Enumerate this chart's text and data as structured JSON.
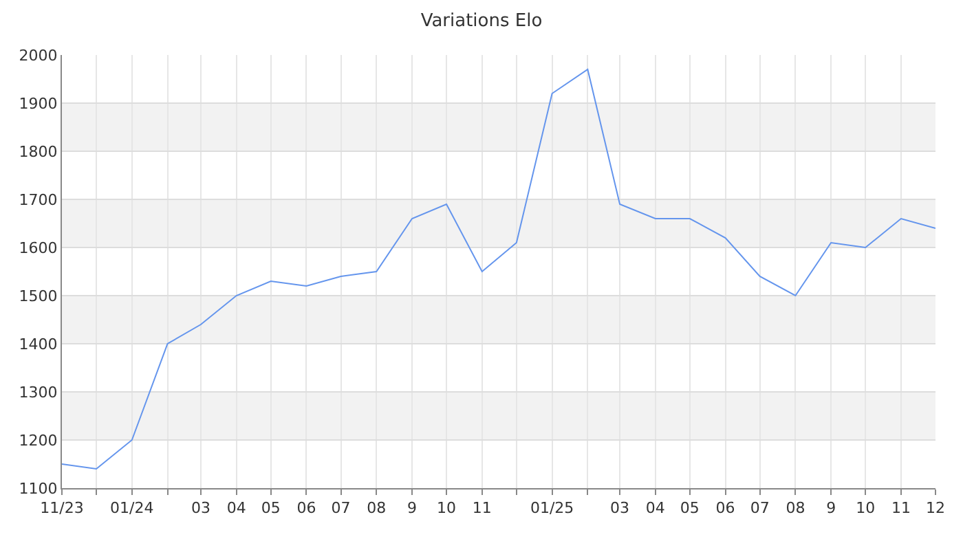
{
  "chart_data": {
    "type": "line",
    "title": "Variations Elo",
    "x": [
      "2023-11",
      "2023-12",
      "2024-01",
      "2024-02",
      "2024-03",
      "2024-04",
      "2024-05",
      "2024-06",
      "2024-07",
      "2024-08",
      "2024-09",
      "2024-10",
      "2024-11",
      "2024-12",
      "2025-01",
      "2025-02",
      "2025-03",
      "2025-04",
      "2025-05",
      "2025-06",
      "2025-07",
      "2025-08",
      "2025-09",
      "2025-10",
      "2025-11",
      "2025-12"
    ],
    "series": [
      {
        "color": "#6495ed",
        "values": [
          1150,
          1140,
          1200,
          1400,
          1440,
          1500,
          1530,
          1520,
          1540,
          1550,
          1660,
          1690,
          1550,
          1610,
          1920,
          1970,
          1690,
          1660,
          1660,
          1620,
          1540,
          1500,
          1610,
          1600,
          1660,
          1640
        ]
      }
    ],
    "xlim": [
      "2023-11",
      "2025-12"
    ],
    "xticks": [
      {
        "value": "2023-11",
        "label": "11/23"
      },
      {
        "value": "2023-12",
        "label": null
      },
      {
        "value": "2024-01",
        "label": "01/24"
      },
      {
        "value": "2024-02",
        "label": null
      },
      {
        "value": "2024-03",
        "label": "03"
      },
      {
        "value": "2024-04",
        "label": "04"
      },
      {
        "value": "2024-05",
        "label": "05"
      },
      {
        "value": "2024-06",
        "label": "06"
      },
      {
        "value": "2024-07",
        "label": "07"
      },
      {
        "value": "2024-08",
        "label": "08"
      },
      {
        "value": "2024-09",
        "label": "9"
      },
      {
        "value": "2024-10",
        "label": "10"
      },
      {
        "value": "2024-11",
        "label": "11"
      },
      {
        "value": "2024-12",
        "label": null
      },
      {
        "value": "2025-01",
        "label": "01/25"
      },
      {
        "value": "2025-02",
        "label": null
      },
      {
        "value": "2025-03",
        "label": "03"
      },
      {
        "value": "2025-04",
        "label": "04"
      },
      {
        "value": "2025-05",
        "label": "05"
      },
      {
        "value": "2025-06",
        "label": "06"
      },
      {
        "value": "2025-07",
        "label": "07"
      },
      {
        "value": "2025-08",
        "label": "08"
      },
      {
        "value": "2025-09",
        "label": "9"
      },
      {
        "value": "2025-10",
        "label": "10"
      },
      {
        "value": "2025-11",
        "label": "11"
      },
      {
        "value": "2025-12",
        "label": "12"
      }
    ],
    "ylim": [
      1100,
      2000
    ],
    "yticks": [
      1100,
      1200,
      1300,
      1400,
      1500,
      1600,
      1700,
      1800,
      1900,
      2000
    ],
    "bands": [
      {
        "axis": "y",
        "from": 1200,
        "to": 1300,
        "color": "#f2f2f2"
      },
      {
        "axis": "y",
        "from": 1400,
        "to": 1500,
        "color": "#f2f2f2"
      },
      {
        "axis": "y",
        "from": 1600,
        "to": 1700,
        "color": "#f2f2f2"
      },
      {
        "axis": "y",
        "from": 1800,
        "to": 1900,
        "color": "#f2f2f2"
      }
    ],
    "grid": true,
    "marker": "none",
    "line_style": "solid"
  }
}
